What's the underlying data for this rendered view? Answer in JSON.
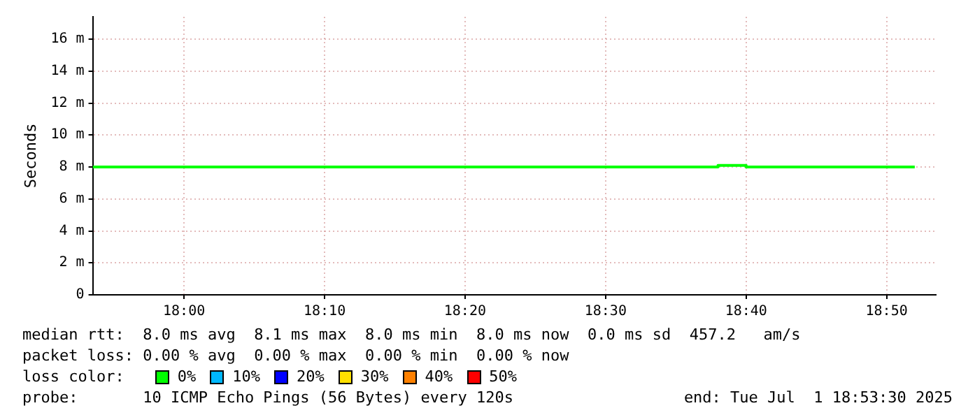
{
  "chart_data": {
    "type": "step",
    "ylabel": "Seconds",
    "x": [
      17.8917,
      18.6333,
      18.6667,
      18.8667
    ],
    "series": [
      {
        "color": "#00ff00",
        "values": [
          8.0,
          8.1,
          8.0,
          8.0
        ]
      }
    ],
    "xlim": [
      17.8917,
      18.8917
    ],
    "xticks": [
      {
        "value": 18,
        "label": "18:00"
      },
      {
        "value": 18.1667,
        "label": "18:10"
      },
      {
        "value": 18.3333,
        "label": "18:20"
      },
      {
        "value": 18.5,
        "label": "18:30"
      },
      {
        "value": 18.6667,
        "label": "18:40"
      },
      {
        "value": 18.8333,
        "label": "18:50"
      }
    ],
    "ylim": [
      0,
      17.4
    ],
    "yticks": [
      0,
      {
        "value": 2,
        "label": "2 m"
      },
      {
        "value": 4,
        "label": "4 m"
      },
      {
        "value": 6,
        "label": "6 m"
      },
      {
        "value": 8,
        "label": "8 m"
      },
      {
        "value": 10,
        "label": "10 m"
      },
      {
        "value": 12,
        "label": "12 m"
      },
      {
        "value": 14,
        "label": "14 m"
      },
      {
        "value": 16,
        "label": "16 m"
      }
    ],
    "grid": true,
    "legend": false,
    "annotations": [
      "median rtt:  8.0 ms avg  8.1 ms max  8.0 ms min  8.0 ms now  0.0 ms sd  457.2   am/s",
      "packet loss: 0.00 % avg  0.00 % max  0.00 % min  0.00 % now",
      "loss color:",
      "0%",
      "10%",
      "20%",
      "30%",
      "40%",
      "50%",
      "probe:       10 ICMP Echo Pings (56 Bytes) every 120s",
      "end: Tue Jul  1 18:53:30 2025"
    ]
  }
}
